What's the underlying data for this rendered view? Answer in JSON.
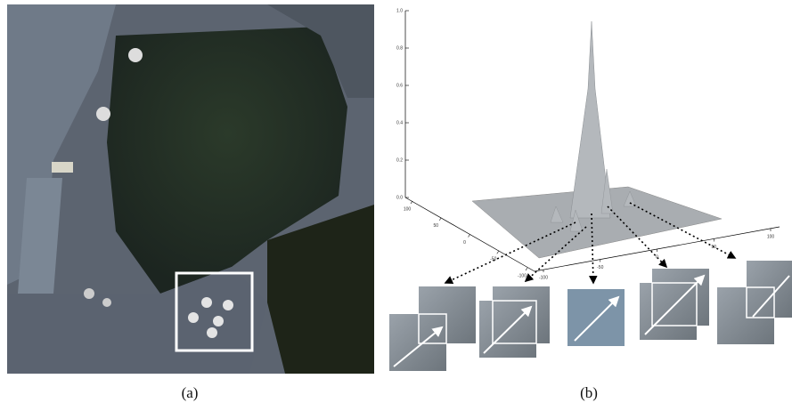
{
  "figure": {
    "panels": [
      {
        "label": "(a)"
      },
      {
        "label": "(b)"
      }
    ],
    "surface_plot": {
      "zticks": [
        {
          "value": 0,
          "label": "0.0"
        },
        0.2,
        0.4,
        0.6,
        0.8,
        {
          "value": 1,
          "label": "1.0"
        }
      ],
      "xticks": [
        100,
        50,
        0,
        -50,
        -100
      ],
      "yticks": [
        -100,
        -50,
        0,
        50,
        100
      ]
    }
  }
}
